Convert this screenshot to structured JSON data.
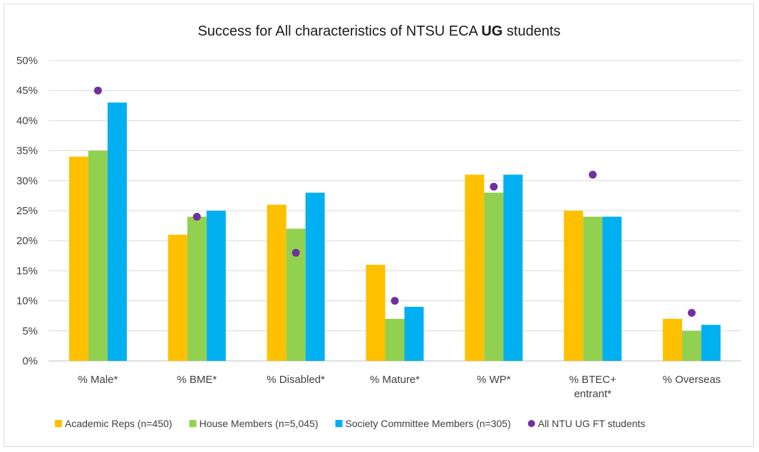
{
  "chart_data": {
    "type": "bar",
    "title": {
      "prefix": "Success for All characteristics of NTSU ECA ",
      "bold": "UG",
      "suffix": " students"
    },
    "xlabel": "",
    "ylabel": "",
    "ylim": [
      0,
      50
    ],
    "y_ticks": [
      "0%",
      "5%",
      "10%",
      "15%",
      "20%",
      "25%",
      "30%",
      "35%",
      "40%",
      "45%",
      "50%"
    ],
    "grid": true,
    "legend_position": "bottom",
    "categories": [
      [
        "% Male*"
      ],
      [
        "% BME*"
      ],
      [
        "% Disabled*"
      ],
      [
        "% Mature*"
      ],
      [
        "% WP*"
      ],
      [
        "% BTEC+",
        "entrant*"
      ],
      [
        "% Overseas"
      ]
    ],
    "series": [
      {
        "name": "Academic Reps (n=450)",
        "kind": "bar",
        "color": "#ffc000",
        "values": [
          34,
          21,
          26,
          16,
          31,
          25,
          7
        ]
      },
      {
        "name": "House Members (n=5,045)",
        "kind": "bar",
        "color": "#92d050",
        "values": [
          35,
          24,
          22,
          7,
          28,
          24,
          5
        ]
      },
      {
        "name": "Society Committee Members (n=305)",
        "kind": "bar",
        "color": "#00b0f0",
        "values": [
          43,
          25,
          28,
          9,
          31,
          24,
          6
        ]
      },
      {
        "name": "All NTU UG FT students",
        "kind": "marker",
        "color": "#7030a0",
        "values": [
          45,
          24,
          18,
          10,
          29,
          31,
          8
        ]
      }
    ]
  }
}
